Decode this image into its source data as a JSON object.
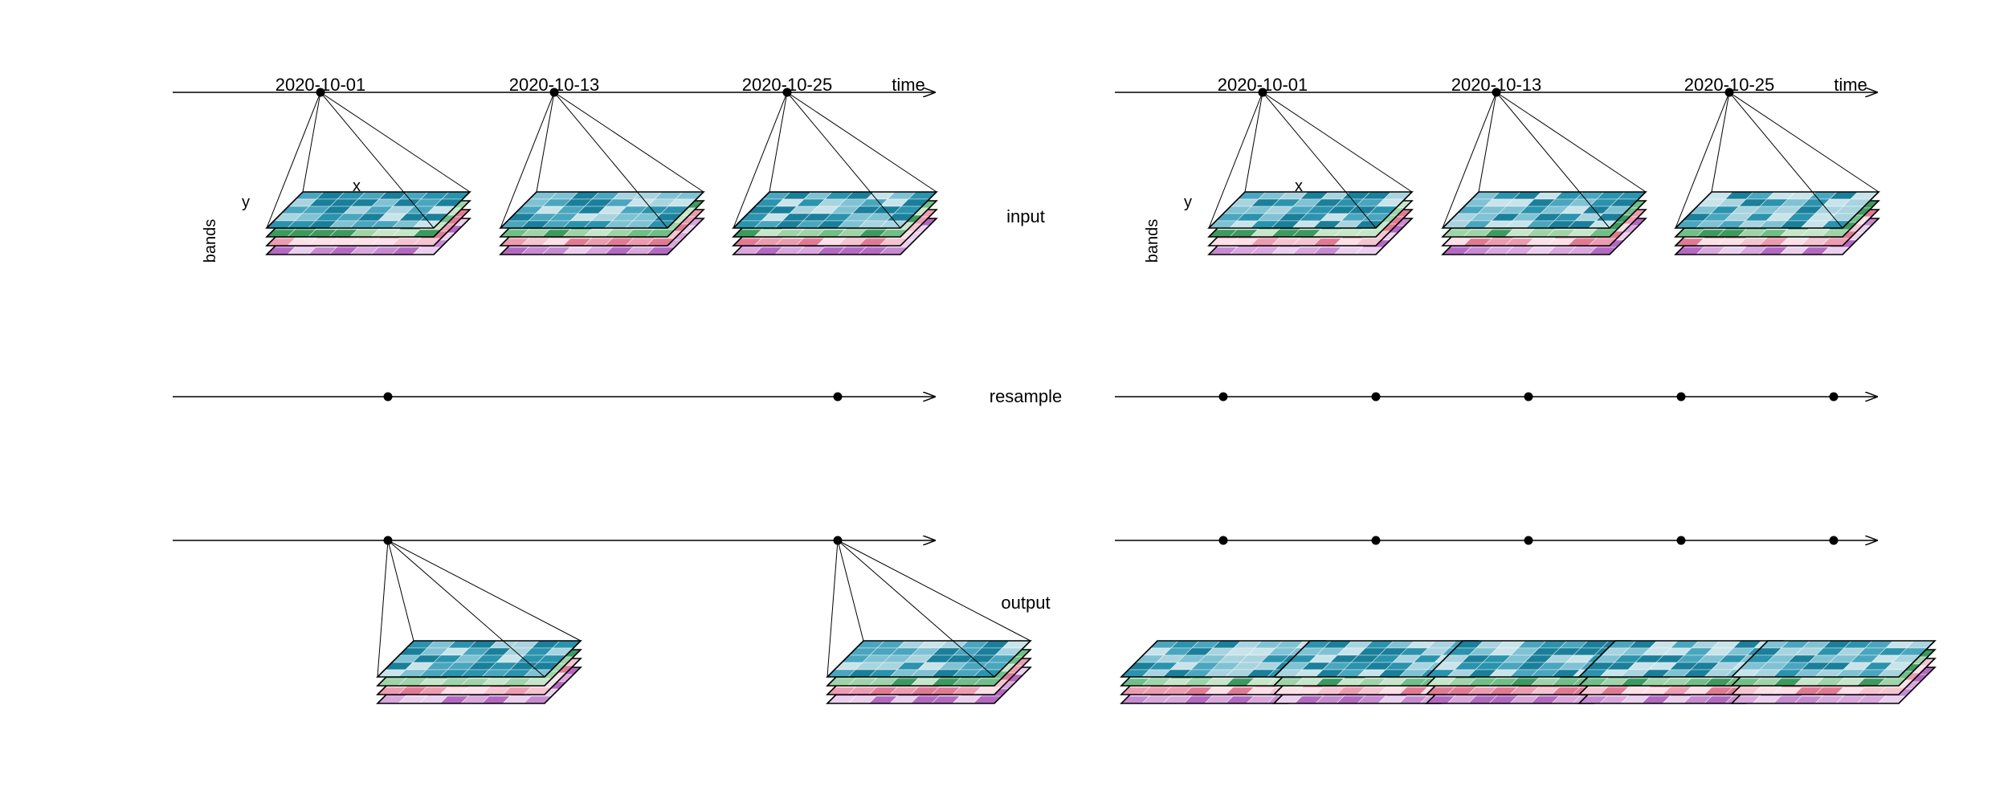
{
  "labels": {
    "time_axis": "time",
    "dimension_x": "x",
    "dimension_y": "y",
    "dimension_bands": "bands"
  },
  "rows": {
    "input": "input",
    "resample": "resample",
    "output": "output"
  },
  "input_dates": [
    "2020-10-01",
    "2020-10-13",
    "2020-10-25"
  ],
  "panels": [
    {
      "resample_points": 2,
      "output_cubes": 2
    },
    {
      "resample_points": 5,
      "output_cubes": 5
    }
  ],
  "colors": {
    "band1": "#5fb4c8",
    "band2": "#a8d8a8",
    "band3": "#f2b8c6",
    "band4": "#d9a6dd",
    "teal_shades": [
      "#1a7f9a",
      "#2a93ad",
      "#4aa6bf",
      "#7fc2d3",
      "#a9d4df",
      "#c8e4ea"
    ],
    "green_shades": [
      "#3c9a5f",
      "#6fbf86",
      "#9fd4a8",
      "#c6e6c9"
    ],
    "pink_shades": [
      "#e07a93",
      "#ec9cb0",
      "#f5c4d1",
      "#fbe0e7"
    ],
    "purple_shades": [
      "#b369c2",
      "#c68ad2",
      "#d9a6dd",
      "#ead0ee"
    ]
  }
}
